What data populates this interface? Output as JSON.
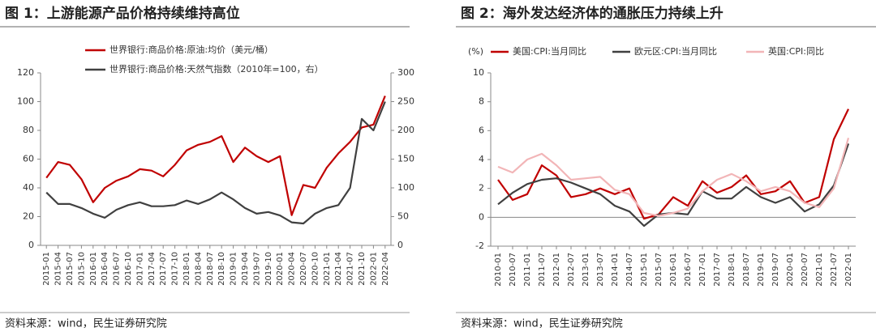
{
  "chart_data": [
    {
      "type": "line",
      "title": "图 1：上游能源产品价格持续维持高位",
      "source": "资料来源：wind，民生证券研究院",
      "categories": [
        "2015-01",
        "2015-04",
        "2015-07",
        "2015-10",
        "2016-01",
        "2016-04",
        "2016-07",
        "2016-10",
        "2017-01",
        "2017-04",
        "2017-07",
        "2017-10",
        "2018-01",
        "2018-04",
        "2018-07",
        "2018-10",
        "2019-01",
        "2019-04",
        "2019-07",
        "2019-10",
        "2020-01",
        "2020-04",
        "2020-07",
        "2020-10",
        "2021-01",
        "2021-04",
        "2021-07",
        "2021-10",
        "2022-01",
        "2022-04"
      ],
      "series": [
        {
          "name": "世界银行:商品价格:原油:均价（美元/桶）",
          "color": "#c00000",
          "values": [
            47,
            58,
            56,
            46,
            30,
            40,
            45,
            48,
            53,
            52,
            48,
            56,
            66,
            70,
            72,
            76,
            58,
            68,
            62,
            58,
            62,
            21,
            42,
            40,
            54,
            64,
            72,
            82,
            84,
            104
          ]
        },
        {
          "name": "世界银行:商品价格:天然气指数（2010年=100，右）",
          "color": "#404040",
          "axis": "y2",
          "values": [
            92,
            72,
            72,
            65,
            55,
            48,
            62,
            70,
            75,
            68,
            68,
            70,
            78,
            72,
            80,
            92,
            80,
            65,
            55,
            58,
            52,
            40,
            38,
            55,
            65,
            70,
            100,
            220,
            200,
            250
          ]
        }
      ],
      "ylim": [
        0,
        120
      ],
      "yticks": [
        0,
        20,
        40,
        60,
        80,
        100,
        120
      ],
      "y2lim": [
        0,
        300
      ],
      "y2ticks": [
        0,
        50,
        100,
        150,
        200,
        250,
        300
      ]
    },
    {
      "type": "line",
      "title": "图 2：海外发达经济体的通胀压力持续上升",
      "source": "资料来源：wind，民生证券研究院",
      "y_label": "(%)",
      "categories": [
        "2010-01",
        "2010-07",
        "2011-01",
        "2011-07",
        "2012-01",
        "2012-07",
        "2013-01",
        "2013-07",
        "2014-01",
        "2014-07",
        "2015-01",
        "2015-07",
        "2016-01",
        "2016-07",
        "2017-01",
        "2017-07",
        "2018-01",
        "2018-07",
        "2019-01",
        "2019-07",
        "2020-01",
        "2020-07",
        "2021-01",
        "2021-07",
        "2022-01"
      ],
      "series": [
        {
          "name": "美国:CPI:当月同比",
          "color": "#c00000",
          "values": [
            2.6,
            1.2,
            1.6,
            3.6,
            2.9,
            1.4,
            1.6,
            2.0,
            1.6,
            2.0,
            -0.1,
            0.2,
            1.4,
            0.8,
            2.5,
            1.7,
            2.1,
            2.9,
            1.6,
            1.8,
            2.5,
            1.0,
            1.4,
            5.4,
            7.5
          ]
        },
        {
          "name": "欧元区:CPI:当月同比",
          "color": "#404040",
          "values": [
            0.9,
            1.7,
            2.3,
            2.6,
            2.7,
            2.4,
            2.0,
            1.6,
            0.8,
            0.4,
            -0.6,
            0.2,
            0.3,
            0.2,
            1.8,
            1.3,
            1.3,
            2.1,
            1.4,
            1.0,
            1.4,
            0.4,
            0.9,
            2.2,
            5.1
          ]
        },
        {
          "name": "英国:CPI:同比",
          "color": "#f2b5b7",
          "values": [
            3.5,
            3.1,
            4.0,
            4.4,
            3.6,
            2.6,
            2.7,
            2.8,
            1.9,
            1.6,
            0.3,
            0.1,
            0.3,
            0.6,
            1.8,
            2.6,
            3.0,
            2.5,
            1.8,
            2.1,
            1.8,
            1.0,
            0.7,
            2.0,
            5.5
          ]
        }
      ],
      "ylim": [
        -2,
        10
      ],
      "yticks": [
        -2,
        0,
        2,
        4,
        6,
        8,
        10
      ]
    }
  ]
}
